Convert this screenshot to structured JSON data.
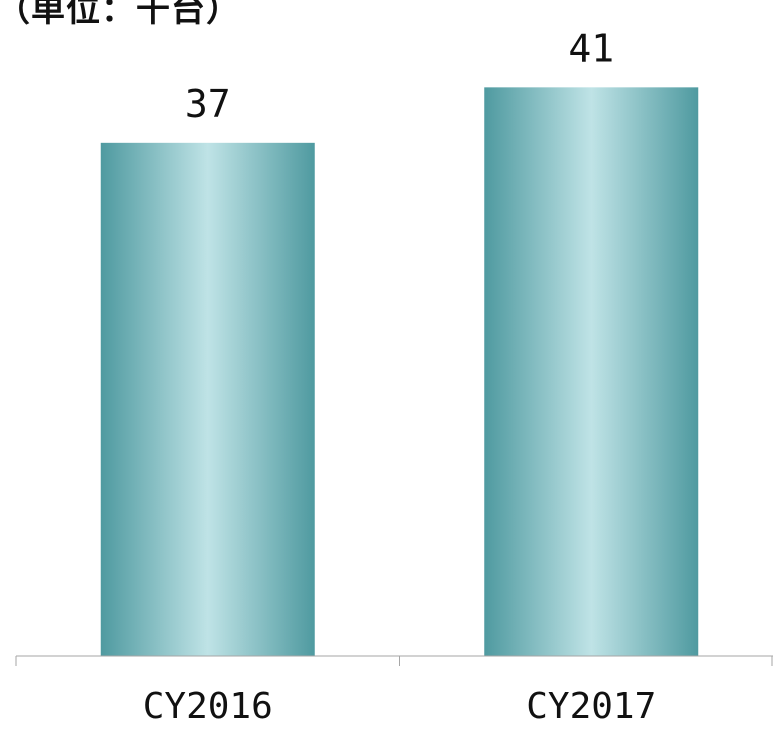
{
  "unit_label": "（単位：千台）",
  "colors": {
    "bar_edge": "#4f9aa0",
    "bar_center": "#bfe3e6",
    "axis": "#a6a6a6",
    "text": "#111111"
  },
  "chart_data": {
    "type": "bar",
    "categories": [
      "CY2016",
      "CY2017"
    ],
    "values": [
      37,
      41
    ],
    "data_labels": [
      "37",
      "41"
    ],
    "ylim": [
      0,
      46
    ],
    "grid": false,
    "legend": "none"
  }
}
